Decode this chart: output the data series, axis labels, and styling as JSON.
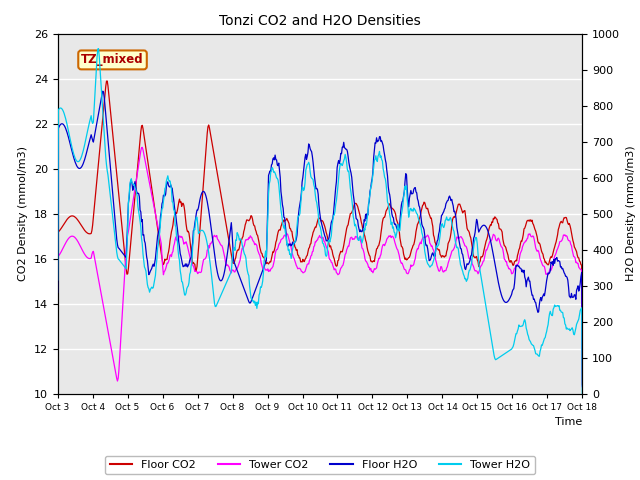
{
  "title": "Tonzi CO2 and H2O Densities",
  "xlabel": "Time",
  "ylabel_left": "CO2 Density (mmol/m3)",
  "ylabel_right": "H2O Density (mmol/m3)",
  "ylim_left": [
    10,
    26
  ],
  "ylim_right": [
    0,
    1000
  ],
  "annotation_text": "TZ_mixed",
  "colors": {
    "floor_co2": "#cc0000",
    "tower_co2": "#ff00ff",
    "floor_h2o": "#0000cc",
    "tower_h2o": "#00ccee"
  },
  "legend_labels": [
    "Floor CO2",
    "Tower CO2",
    "Floor H2O",
    "Tower H2O"
  ],
  "fig_facecolor": "#ffffff",
  "plot_facecolor": "#e8e8e8",
  "xtick_labels": [
    "Oct 3",
    "Oct 4",
    "Oct 5",
    "Oct 6",
    "Oct 7",
    "Oct 8",
    "Oct 9",
    "Oct 10",
    "Oct 11",
    "Oct 12",
    "Oct 13",
    "Oct 14",
    "Oct 15",
    "Oct 16",
    "Oct 17",
    "Oct 18"
  ],
  "n_days": 15,
  "pts_per_day": 48
}
